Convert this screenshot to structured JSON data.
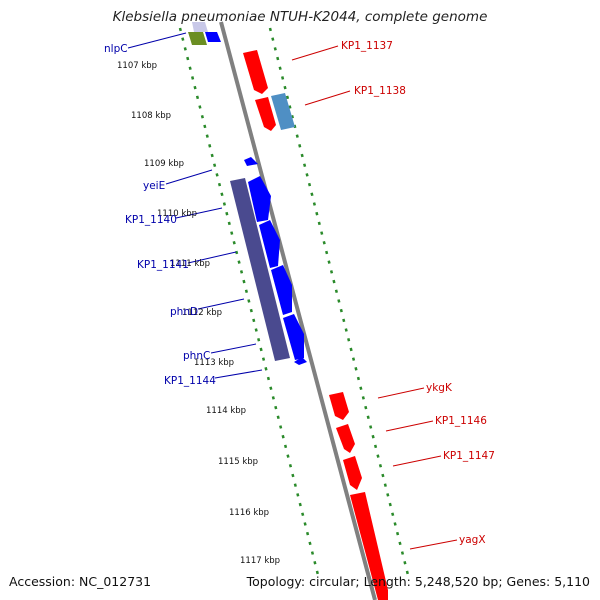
{
  "title": "Klebsiella pneumoniae NTUH-K2044, complete genome",
  "footer": {
    "accession": "Accession: NC_012731",
    "summary": "Topology: circular; Length: 5,248,520 bp; Genes: 5,110"
  },
  "colors": {
    "forward_strand": "#0000ff",
    "reverse_strand": "#ff0000",
    "backbone": "#808080",
    "ruler": "#2a8a2a",
    "left_labels": "#0000aa",
    "right_labels": "#cc0000"
  },
  "scale_ticks": [
    "1107 kbp",
    "1108 kbp",
    "1109 kbp",
    "1110 kbp",
    "1111 kbp",
    "1112 kbp",
    "1113 kbp",
    "1114 kbp",
    "1115 kbp",
    "1116 kbp",
    "1117 kbp"
  ],
  "left_gene_labels": [
    "nlpC",
    "yeiE",
    "KP1_1140",
    "KP1_1141",
    "phnD",
    "phnC",
    "KP1_1144"
  ],
  "right_gene_labels": [
    "KP1_1137",
    "KP1_1138",
    "ykgK",
    "KP1_1146",
    "KP1_1147",
    "yagX"
  ]
}
